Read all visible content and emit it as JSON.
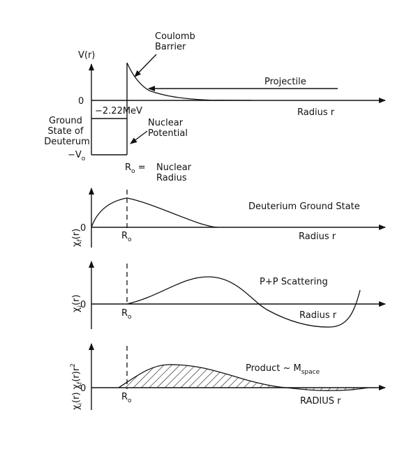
{
  "panel_potential": {
    "y_axis_label": "V(r)",
    "zero_label": "0",
    "neg_label": "−V",
    "neg_label_sub": "o",
    "energy_label": "−2.22MeV",
    "ground_state_lines": [
      "Ground",
      "State of",
      "Deuterum"
    ],
    "coulomb_lines": [
      "Coulomb",
      "Barrier"
    ],
    "nuclear_potential_lines": [
      "Nuclear",
      "Potential"
    ],
    "projectile_label": "Projectile",
    "x_axis_label": "Radius  r",
    "r0_label": "R",
    "r0_sub": "o",
    "r0_suffix": " =",
    "nuclear_radius_lines": [
      "Nuclear",
      "Radius"
    ]
  },
  "panel_deuterium": {
    "y_label": "χ",
    "y_sub": "f",
    "y_suffix": "(r)",
    "zero_label": "0",
    "r0_label": "R",
    "r0_sub": "o",
    "title": "Deuterium  Ground  State",
    "x_axis_label": "Radius  r"
  },
  "panel_scattering": {
    "y_label": "χ",
    "y_sub": "i",
    "y_suffix": "(r)",
    "zero_label": "0",
    "r0_label": "R",
    "r0_sub": "o",
    "title": "P+P  Scattering",
    "x_axis_label": "Radius  r"
  },
  "panel_product": {
    "y_label": "χ",
    "y_sub1": "i",
    "y_mid": "(r) χ",
    "y_sub2": "f",
    "y_suffix": "(r)r",
    "y_sup": "2",
    "zero_label": "0",
    "r0_label": "R",
    "r0_sub": "o",
    "title": "Product ~ M",
    "title_sub": "space",
    "x_axis_label": "RADIUS  r"
  }
}
